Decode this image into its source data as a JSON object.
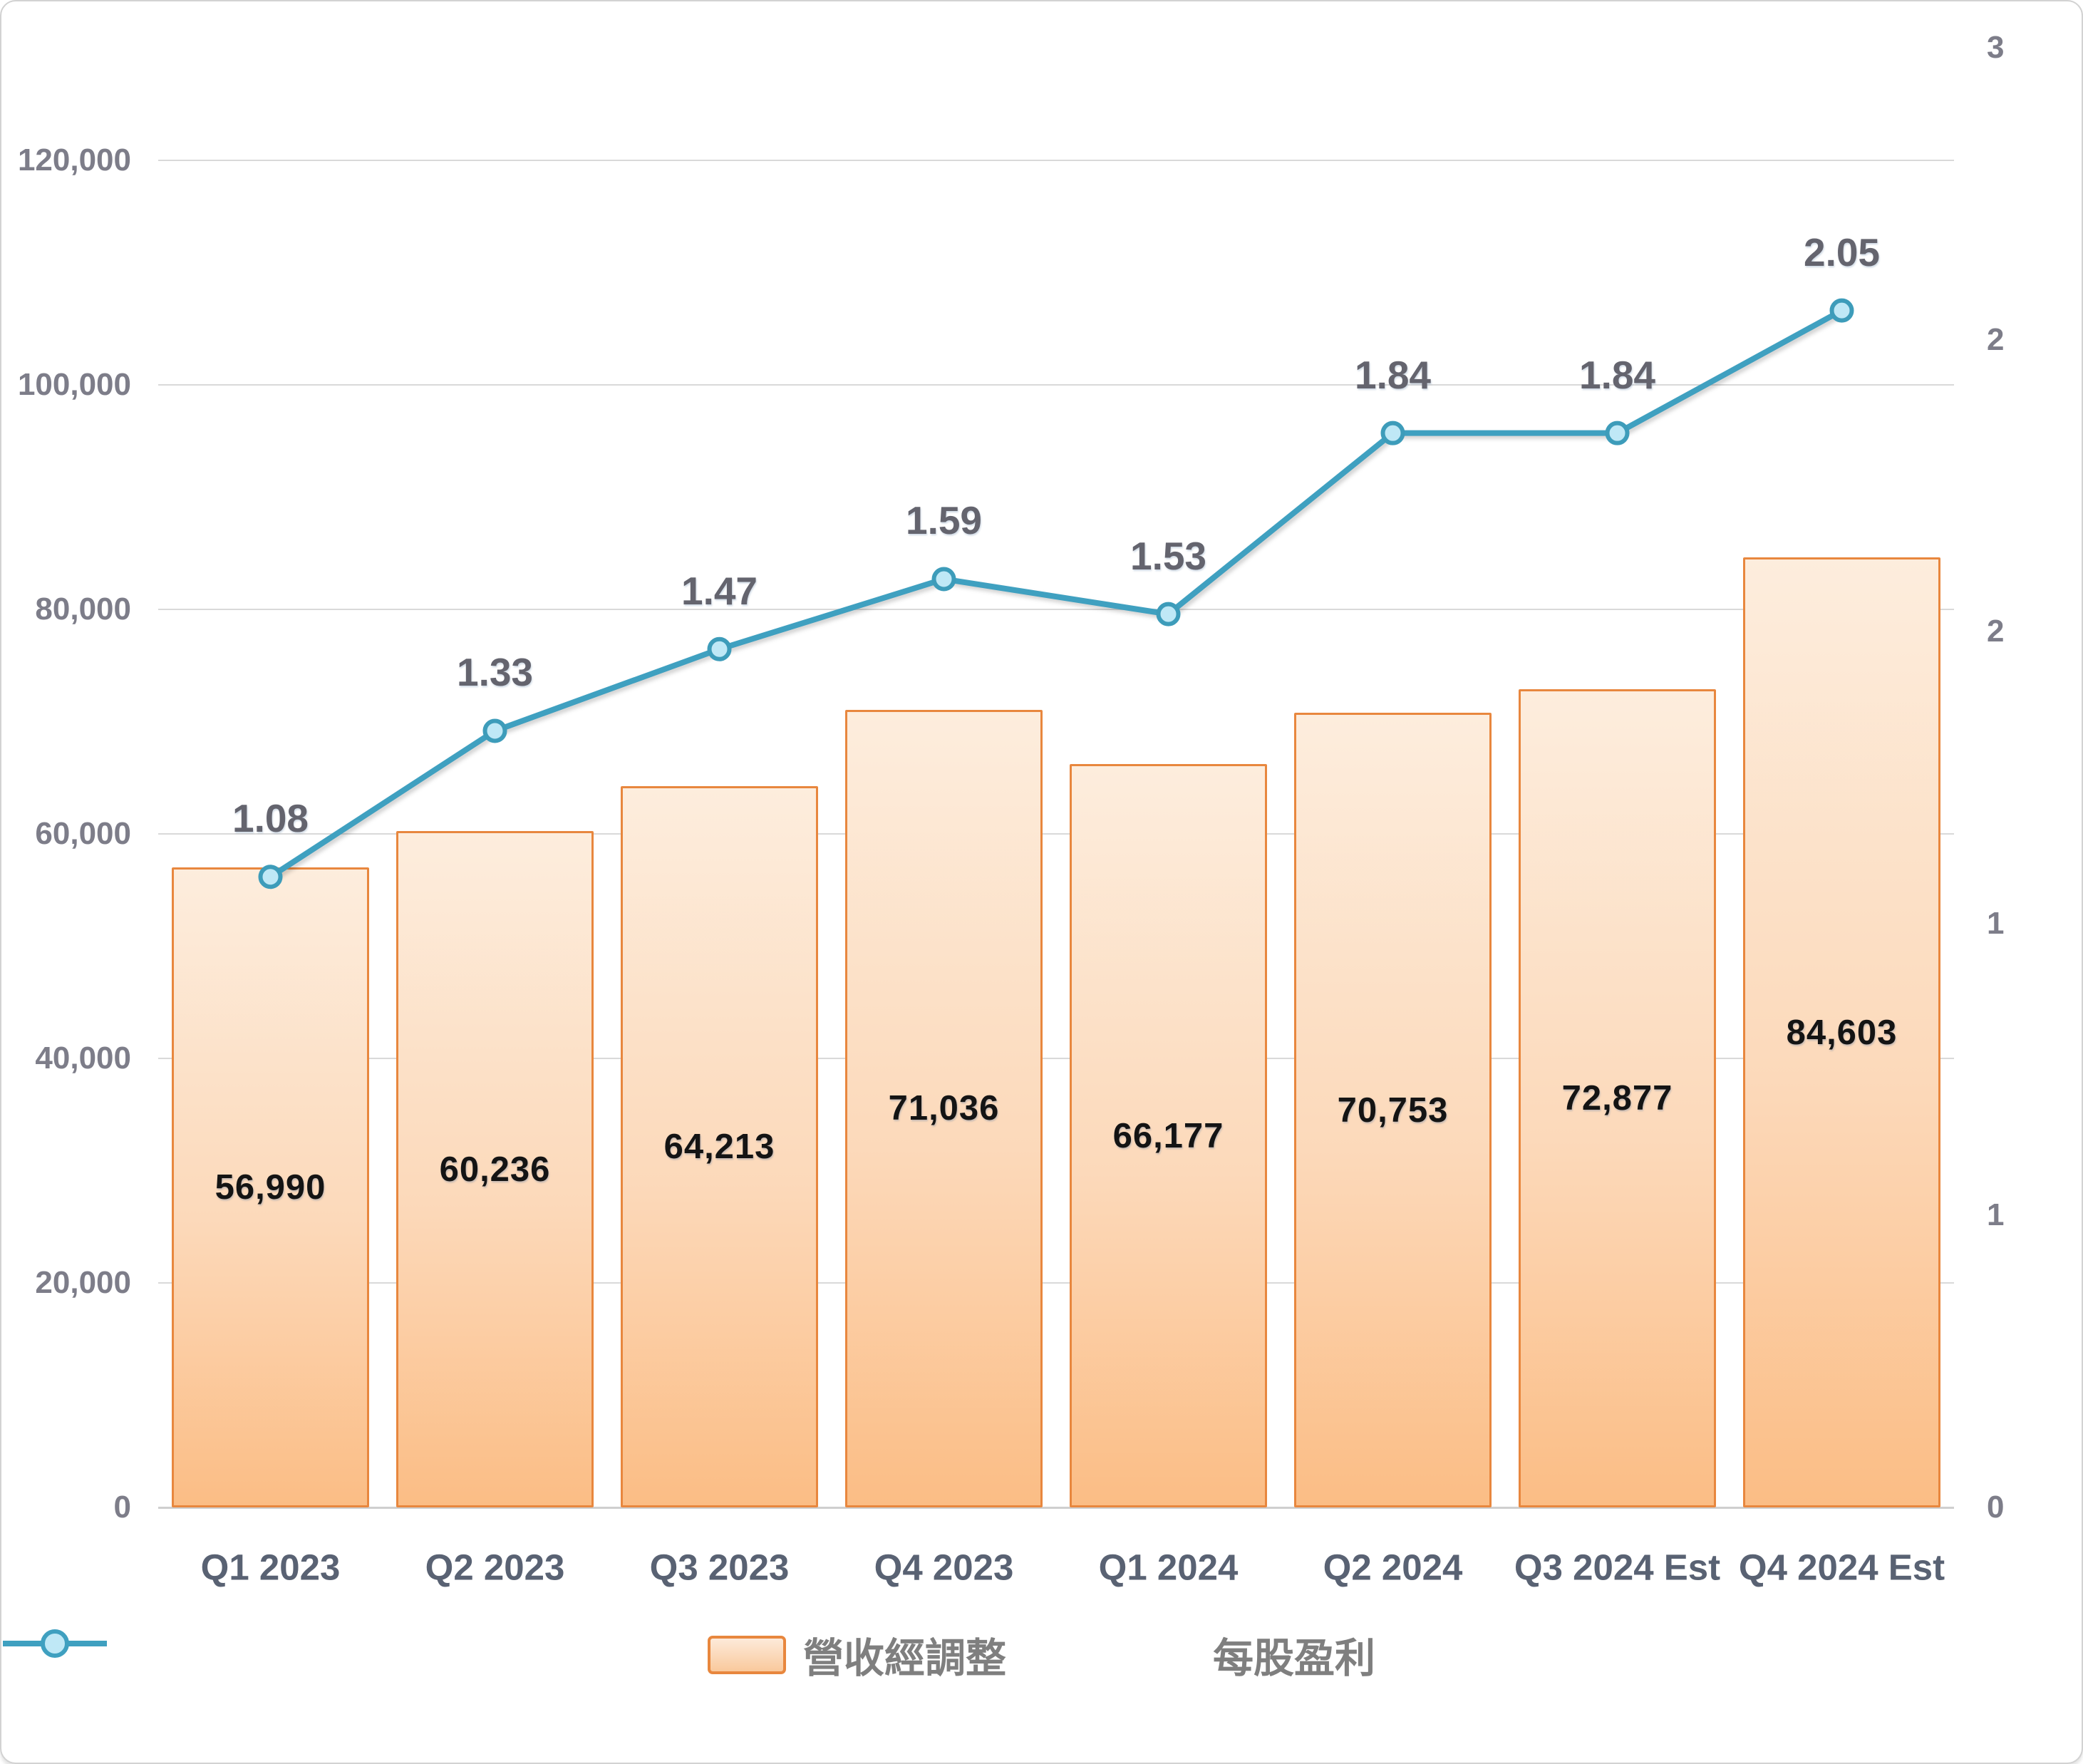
{
  "chart_data": {
    "type": "combo-bar-line",
    "title": "",
    "categories": [
      "Q1 2023",
      "Q2 2023",
      "Q3 2023",
      "Q4 2023",
      "Q1 2024",
      "Q2 2024",
      "Q3 2024 Est",
      "Q4 2024 Est"
    ],
    "series": [
      {
        "name": "營收經調整",
        "type": "bar",
        "axis": "left",
        "values": [
          56990,
          60236,
          64213,
          71036,
          66177,
          70753,
          72877,
          84603
        ],
        "labels": [
          "56,990",
          "60,236",
          "64,213",
          "71,036",
          "66,177",
          "70,753",
          "72,877",
          "84,603"
        ]
      },
      {
        "name": "每股盈利",
        "type": "line",
        "axis": "right",
        "values": [
          1.08,
          1.33,
          1.47,
          1.59,
          1.53,
          1.84,
          1.84,
          2.05
        ],
        "labels": [
          "1.08",
          "1.33",
          "1.47",
          "1.59",
          "1.53",
          "1.84",
          "1.84",
          "2.05"
        ]
      }
    ],
    "left_axis": {
      "min": 0,
      "max": 130000,
      "major_unit": 20000,
      "tick_labels": [
        "0",
        "20,000",
        "40,000",
        "60,000",
        "80,000",
        "100,000",
        "120,000"
      ]
    },
    "right_axis": {
      "min": 0,
      "max": 2.5,
      "major_unit": 0.5,
      "tick_labels": [
        "0",
        "1",
        "1",
        "2",
        "2",
        "3"
      ]
    },
    "grid": "horizontal",
    "legend_position": "bottom",
    "colors": {
      "bar_fill_top": "#FDEDDD",
      "bar_fill_bottom": "#FBBD85",
      "bar_border": "#E8873E",
      "line": "#3FA0C0",
      "marker_fill": "#BFE8F6",
      "marker_border": "#3D9CBA",
      "gridline": "#D9D9D9",
      "axis_line": "#CFCFCF",
      "axis_tick_text": "#7D7D89",
      "category_text": "#596273",
      "bar_label_text": "#141414",
      "line_label_text": "#64646E",
      "legend_text": "#7F7F7F"
    }
  }
}
